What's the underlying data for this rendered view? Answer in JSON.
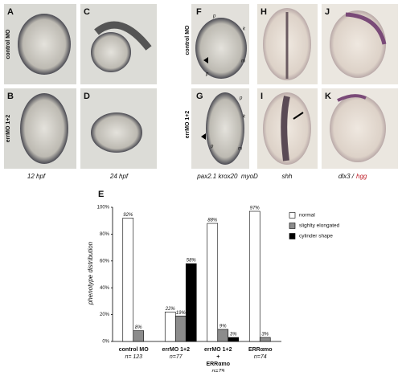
{
  "panels": {
    "letters": [
      "A",
      "B",
      "C",
      "D",
      "F",
      "G",
      "H",
      "I",
      "J",
      "K"
    ],
    "row_labels": [
      "control MO",
      "errMO 1+2"
    ],
    "annotations_f": [
      "p",
      "k",
      "m",
      "p"
    ],
    "annotations_g": [
      "p",
      "k",
      "m",
      "p"
    ],
    "captions": [
      "12 hpf",
      "24 hpf",
      "pax2.1 krox20  myoD",
      "shh"
    ],
    "caption_dlx": "dlx3 /",
    "caption_hgg": "hgg"
  },
  "chart_label": "E",
  "chart_data": {
    "type": "bar",
    "y_label": "phenotype distribution",
    "categories": [
      [
        "control MO"
      ],
      [
        "errMO 1+2"
      ],
      [
        "errMO 1+2",
        "+",
        "ERRαmo"
      ],
      [
        "ERRαmo"
      ]
    ],
    "sample_sizes": [
      "n= 123",
      "n=77",
      "n=79",
      "n=74"
    ],
    "series": [
      {
        "name": "normal",
        "color": "#ffffff",
        "values": [
          92,
          22,
          88,
          97
        ],
        "value_labels": [
          "92%",
          "22%",
          "88%",
          "97%"
        ]
      },
      {
        "name": "slighlty elongated",
        "color": "#8c8c8c",
        "values": [
          8,
          19,
          9,
          3
        ],
        "value_labels": [
          "8%",
          "19%",
          "9%",
          "3%"
        ]
      },
      {
        "name": "cylinder shape",
        "color": "#000000",
        "values": [
          null,
          58,
          3,
          null
        ],
        "value_labels": [
          null,
          "58%",
          "3%",
          null
        ]
      }
    ],
    "ylim": [
      0,
      100
    ],
    "yticks": [
      {
        "value": 0,
        "label": "0%"
      },
      {
        "value": 20,
        "label": "20%"
      },
      {
        "value": 40,
        "label": "40%"
      },
      {
        "value": 60,
        "label": "60%"
      },
      {
        "value": 80,
        "label": "80%"
      },
      {
        "value": 100,
        "label": "100%"
      }
    ],
    "legend": "right"
  }
}
